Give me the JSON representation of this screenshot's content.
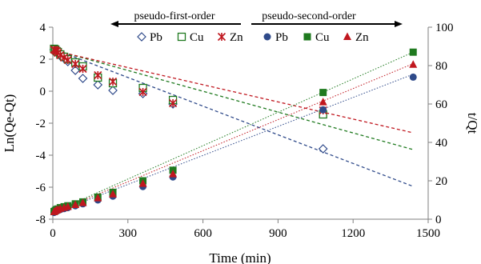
{
  "chart_data": {
    "type": "scatter",
    "title": "",
    "x_axis": {
      "label": "Time (min)",
      "min": 0,
      "max": 1500,
      "ticks": [
        "0",
        "300",
        "600",
        "900",
        "1200",
        "1500"
      ]
    },
    "y_left_axis": {
      "label": "Ln(Qe-Qt)",
      "min": -8,
      "max": 4,
      "ticks": [
        "-8",
        "-6",
        "-4",
        "-2",
        "0",
        "2",
        "4"
      ]
    },
    "y_right_axis": {
      "label": "t/Qt",
      "min": 0,
      "max": 100,
      "ticks": [
        "0",
        "20",
        "40",
        "60",
        "80",
        "100"
      ]
    },
    "grid": false,
    "legend": {
      "placement": "top",
      "groups": [
        {
          "title": "pseudo-first-order",
          "axis": "left",
          "arrow": "left",
          "entries": [
            "Pb",
            "Cu",
            "Zn"
          ]
        },
        {
          "title": "pseudo-second-order",
          "axis": "right",
          "arrow": "right",
          "entries": [
            "Pb",
            "Cu",
            "Zn"
          ]
        }
      ]
    },
    "colors": {
      "Pb": "#2f4a8a",
      "Cu": "#1f7a1f",
      "Zn": "#c0171f"
    },
    "series": [
      {
        "name": "Pb",
        "model": "pseudo-first-order",
        "axis": "left",
        "marker": "diamond-open",
        "color": "#2f4a8a",
        "x": [
          5,
          10,
          15,
          20,
          30,
          45,
          60,
          90,
          120,
          180,
          240,
          360,
          480,
          1080
        ],
        "y": [
          2.6,
          2.5,
          2.45,
          2.35,
          2.2,
          2.05,
          1.85,
          1.3,
          0.8,
          0.4,
          0.05,
          -0.15,
          -0.8,
          -3.6
        ],
        "trend": {
          "x": [
            0,
            1440
          ],
          "y": [
            2.65,
            -5.95
          ]
        }
      },
      {
        "name": "Cu",
        "model": "pseudo-first-order",
        "axis": "left",
        "marker": "square-open",
        "color": "#1f7a1f",
        "x": [
          5,
          10,
          15,
          20,
          30,
          45,
          60,
          90,
          120,
          180,
          240,
          360,
          480,
          1080
        ],
        "y": [
          2.65,
          2.6,
          2.5,
          2.45,
          2.3,
          2.15,
          2.0,
          1.8,
          1.55,
          0.85,
          0.5,
          0.2,
          -0.55,
          -1.45
        ],
        "trend": {
          "x": [
            0,
            1440
          ],
          "y": [
            2.6,
            -3.65
          ]
        }
      },
      {
        "name": "Zn",
        "model": "pseudo-first-order",
        "axis": "left",
        "marker": "star",
        "color": "#c0171f",
        "x": [
          5,
          10,
          15,
          20,
          30,
          45,
          60,
          90,
          120,
          180,
          240,
          360,
          480,
          1080
        ],
        "y": [
          2.6,
          2.55,
          2.5,
          2.4,
          2.25,
          2.1,
          1.95,
          1.7,
          1.4,
          1.0,
          0.6,
          -0.05,
          -0.75,
          -1.2
        ],
        "trend": {
          "x": [
            0,
            1440
          ],
          "y": [
            2.55,
            -2.6
          ]
        }
      },
      {
        "name": "Pb",
        "model": "pseudo-second-order",
        "axis": "right",
        "marker": "circle",
        "color": "#2f4a8a",
        "x": [
          5,
          10,
          15,
          20,
          30,
          45,
          60,
          90,
          120,
          180,
          240,
          360,
          480,
          1080,
          1440
        ],
        "y": [
          3.5,
          4.0,
          4.3,
          4.5,
          5.0,
          5.5,
          6.0,
          7.0,
          8.0,
          10.0,
          12.0,
          17.0,
          22.0,
          57.0,
          74.0
        ],
        "trend": {
          "x": [
            0,
            1440
          ],
          "y": [
            3.0,
            75.5
          ]
        }
      },
      {
        "name": "Cu",
        "model": "pseudo-second-order",
        "axis": "right",
        "marker": "square",
        "color": "#1f7a1f",
        "x": [
          5,
          10,
          15,
          20,
          30,
          45,
          60,
          90,
          120,
          180,
          240,
          360,
          480,
          1080,
          1440
        ],
        "y": [
          4.0,
          4.5,
          5.0,
          5.3,
          6.0,
          6.5,
          7.0,
          8.0,
          9.0,
          11.5,
          14.0,
          20.0,
          25.5,
          66.0,
          87.0
        ],
        "trend": {
          "x": [
            0,
            1440
          ],
          "y": [
            3.5,
            87.0
          ]
        }
      },
      {
        "name": "Zn",
        "model": "pseudo-second-order",
        "axis": "right",
        "marker": "triangle",
        "color": "#c0171f",
        "x": [
          5,
          10,
          15,
          20,
          30,
          45,
          60,
          90,
          120,
          180,
          240,
          360,
          480,
          1080,
          1440
        ],
        "y": [
          3.8,
          4.3,
          4.7,
          5.0,
          5.5,
          6.0,
          6.5,
          7.5,
          8.5,
          11.0,
          13.0,
          18.5,
          23.5,
          61.0,
          80.5
        ],
        "trend": {
          "x": [
            0,
            1440
          ],
          "y": [
            3.3,
            81.0
          ]
        }
      }
    ]
  }
}
